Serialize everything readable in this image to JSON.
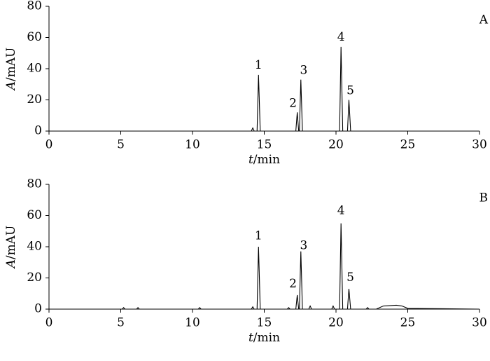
{
  "chart_data": [
    {
      "type": "line",
      "panel_label": "A",
      "xlabel": "t/min",
      "ylabel": "A/mAU",
      "xlim": [
        0,
        30
      ],
      "ylim": [
        0,
        80
      ],
      "xticks": [
        0,
        5,
        10,
        15,
        20,
        25,
        30
      ],
      "yticks": [
        0,
        20,
        40,
        60,
        80
      ],
      "series": [
        {
          "color": "#000000",
          "x": [
            0,
            14.1,
            14.2,
            14.3,
            14.5,
            14.6,
            14.72,
            17.2,
            17.3,
            17.4,
            17.45,
            17.55,
            17.66,
            20.25,
            20.35,
            20.47,
            20.8,
            20.9,
            21.02,
            30
          ],
          "values": [
            0,
            0,
            2,
            0,
            0,
            36,
            0,
            0,
            12,
            0,
            0,
            33,
            0,
            0,
            54,
            0,
            0,
            20,
            0,
            0
          ]
        }
      ],
      "annotations": [
        {
          "text": "1",
          "x": 14.6,
          "y": 42
        },
        {
          "text": "2",
          "x": 17.0,
          "y": 17.5
        },
        {
          "text": "3",
          "x": 17.75,
          "y": 38.6
        },
        {
          "text": "4",
          "x": 20.35,
          "y": 60
        },
        {
          "text": "5",
          "x": 21.0,
          "y": 25.6
        }
      ]
    },
    {
      "type": "line",
      "panel_label": "B",
      "xlabel": "t/min",
      "ylabel": "A/mAU",
      "xlim": [
        0,
        30
      ],
      "ylim": [
        0,
        80
      ],
      "xticks": [
        0,
        5,
        10,
        15,
        20,
        25,
        30
      ],
      "yticks": [
        0,
        20,
        40,
        60,
        80
      ],
      "series": [
        {
          "color": "#000000",
          "x": [
            0,
            5.1,
            5.2,
            5.3,
            6.1,
            6.2,
            6.3,
            10.4,
            10.5,
            10.6,
            14.1,
            14.2,
            14.3,
            14.5,
            14.6,
            14.72,
            16.6,
            16.7,
            16.8,
            17.2,
            17.3,
            17.4,
            17.45,
            17.55,
            17.66,
            18.1,
            18.2,
            18.3,
            19.7,
            19.8,
            19.9,
            20.25,
            20.35,
            20.47,
            20.8,
            20.9,
            21.02,
            22.1,
            22.2,
            22.3,
            22.8,
            23.3,
            24.2,
            24.6,
            25,
            30
          ],
          "values": [
            0,
            0,
            1,
            0,
            0,
            1,
            0,
            0,
            1,
            0,
            0,
            1.5,
            0,
            0,
            40,
            0,
            0,
            1,
            0,
            0,
            9,
            0,
            0,
            37,
            0,
            0,
            2,
            0,
            0,
            2,
            0,
            0,
            55,
            0,
            0,
            13,
            0,
            0,
            1,
            0,
            0,
            2,
            2.5,
            2,
            0.5,
            0
          ]
        }
      ],
      "annotations": [
        {
          "text": "1",
          "x": 14.6,
          "y": 46.7
        },
        {
          "text": "2",
          "x": 17.0,
          "y": 16
        },
        {
          "text": "3",
          "x": 17.75,
          "y": 40.4
        },
        {
          "text": "4",
          "x": 20.35,
          "y": 63
        },
        {
          "text": "5",
          "x": 21.0,
          "y": 20
        }
      ]
    }
  ]
}
